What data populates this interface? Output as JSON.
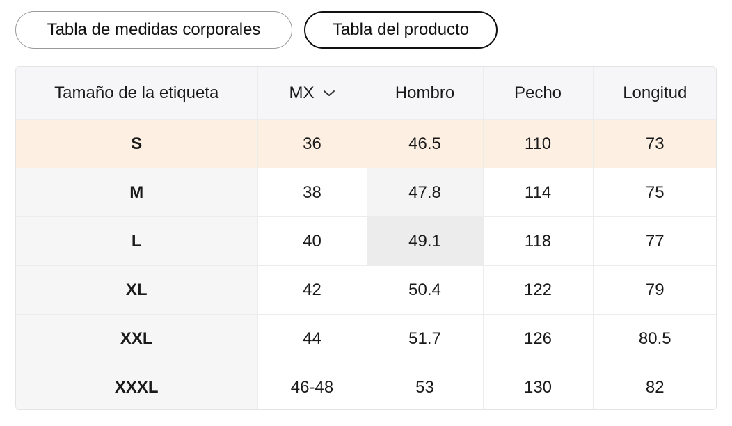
{
  "tabs": [
    {
      "label": "Tabla de medidas corporales",
      "selected": false
    },
    {
      "label": "Tabla del producto",
      "selected": true
    }
  ],
  "table": {
    "headers": {
      "size": "Tamaño de la etiqueta",
      "unit": "MX",
      "shoulder": "Hombro",
      "chest": "Pecho",
      "length": "Longitud"
    },
    "rows": [
      {
        "size": "S",
        "mx": "36",
        "shoulder": "46.5",
        "chest": "110",
        "length": "73"
      },
      {
        "size": "M",
        "mx": "38",
        "shoulder": "47.8",
        "chest": "114",
        "length": "75"
      },
      {
        "size": "L",
        "mx": "40",
        "shoulder": "49.1",
        "chest": "118",
        "length": "77"
      },
      {
        "size": "XL",
        "mx": "42",
        "shoulder": "50.4",
        "chest": "122",
        "length": "79"
      },
      {
        "size": "XXL",
        "mx": "44",
        "shoulder": "51.7",
        "chest": "126",
        "length": "80.5"
      },
      {
        "size": "XXXL",
        "mx": "46-48",
        "shoulder": "53",
        "chest": "130",
        "length": "82"
      }
    ],
    "highlighted_row": "S"
  },
  "colors": {
    "highlight_row": "#fdf0e2",
    "header_bg": "#f6f6f8",
    "size_col_bg": "#f6f6f6",
    "selected_tab_border": "#111111"
  },
  "icons": {
    "unit_dropdown": "chevron-down-icon"
  }
}
